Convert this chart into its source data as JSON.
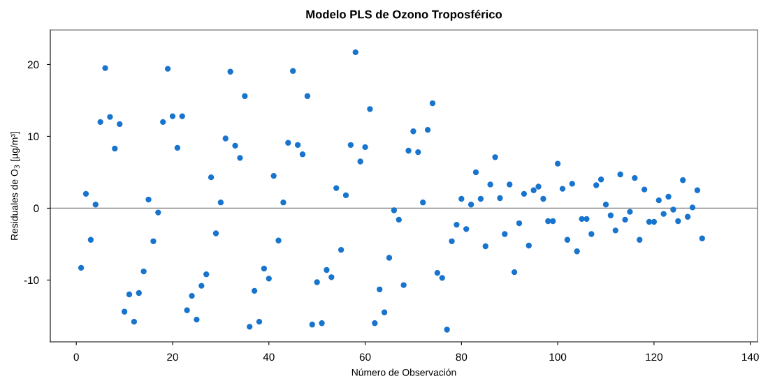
{
  "chart_data": {
    "type": "scatter",
    "title": "Modelo PLS de Ozono Troposférico",
    "xlabel": "Número de Observación",
    "ylabel": "Residuales de O$_{3}$ [µg/m³]",
    "x": [
      1,
      2,
      3,
      4,
      5,
      6,
      7,
      8,
      9,
      10,
      11,
      12,
      13,
      14,
      15,
      16,
      17,
      18,
      19,
      20,
      21,
      22,
      23,
      24,
      25,
      26,
      27,
      28,
      29,
      30,
      31,
      32,
      33,
      34,
      35,
      36,
      37,
      38,
      39,
      40,
      41,
      42,
      43,
      44,
      45,
      46,
      47,
      48,
      49,
      50,
      51,
      52,
      53,
      54,
      55,
      56,
      57,
      58,
      59,
      60,
      61,
      62,
      63,
      64,
      65,
      66,
      67,
      68,
      69,
      70,
      71,
      72,
      73,
      74,
      75,
      76,
      77,
      78,
      79,
      80,
      81,
      82,
      83,
      84,
      85,
      86,
      87,
      88,
      89,
      90,
      91,
      92,
      93,
      94,
      95,
      96,
      97,
      98,
      99,
      100,
      101,
      102,
      103,
      104,
      105,
      106,
      107,
      108,
      109,
      110,
      111,
      112,
      113,
      114,
      115,
      116,
      117,
      118,
      119,
      120,
      121,
      122,
      123,
      124,
      125,
      126,
      127,
      128,
      129,
      130
    ],
    "series": [
      {
        "color": "#1874cd",
        "values": [
          -8.3,
          2.0,
          -4.4,
          0.5,
          12.0,
          19.5,
          12.7,
          8.3,
          11.7,
          -14.4,
          -12.0,
          -15.8,
          -11.8,
          -8.8,
          1.2,
          -4.6,
          -0.6,
          12.0,
          19.4,
          12.8,
          8.4,
          12.8,
          -14.2,
          -12.2,
          -15.5,
          -10.8,
          -9.2,
          4.3,
          -3.5,
          0.8,
          9.7,
          19.0,
          8.7,
          7.0,
          15.6,
          -16.5,
          -11.5,
          -15.8,
          -8.4,
          -9.8,
          4.5,
          -4.5,
          0.8,
          9.1,
          19.1,
          8.8,
          7.5,
          15.6,
          -16.2,
          -10.3,
          -16.0,
          -8.6,
          -9.6,
          2.8,
          -5.8,
          1.8,
          8.8,
          21.7,
          6.5,
          8.5,
          13.8,
          -16.0,
          -11.3,
          -14.5,
          -6.9,
          -0.3,
          -1.6,
          -10.7,
          8.0,
          10.7,
          7.8,
          0.8,
          10.9,
          14.6,
          -9.0,
          -9.7,
          -16.9,
          -4.6,
          -2.3,
          1.3,
          -2.9,
          0.5,
          5.0,
          1.3,
          -5.3,
          3.3,
          7.1,
          1.4,
          -3.6,
          3.3,
          -8.9,
          -2.1,
          2.0,
          -5.2,
          2.5,
          3.0,
          1.3,
          -1.8,
          -1.8,
          6.2,
          2.7,
          -4.4,
          3.4,
          -6.0,
          -1.5,
          -1.5,
          -3.6,
          3.2,
          4.0,
          0.5,
          -1.0,
          -3.1,
          4.7,
          -1.6,
          -0.5,
          4.2,
          -4.4,
          2.6,
          -1.9,
          -1.9,
          1.1,
          -0.8,
          1.6,
          -0.2,
          -1.8,
          3.9,
          -1.2,
          0.1,
          2.5,
          -4.2
        ]
      }
    ],
    "marker": "circle",
    "xlim": [
      -5.4,
      141.5
    ],
    "ylim": [
      -18.6,
      24.8
    ],
    "xticks": [
      0,
      20,
      40,
      60,
      80,
      100,
      120,
      140
    ],
    "yticks": [
      -10,
      0,
      10,
      20
    ],
    "ref_lines": [
      {
        "axis": "y",
        "value": 0,
        "color": "#808080"
      }
    ],
    "grid": false,
    "legend": false
  }
}
